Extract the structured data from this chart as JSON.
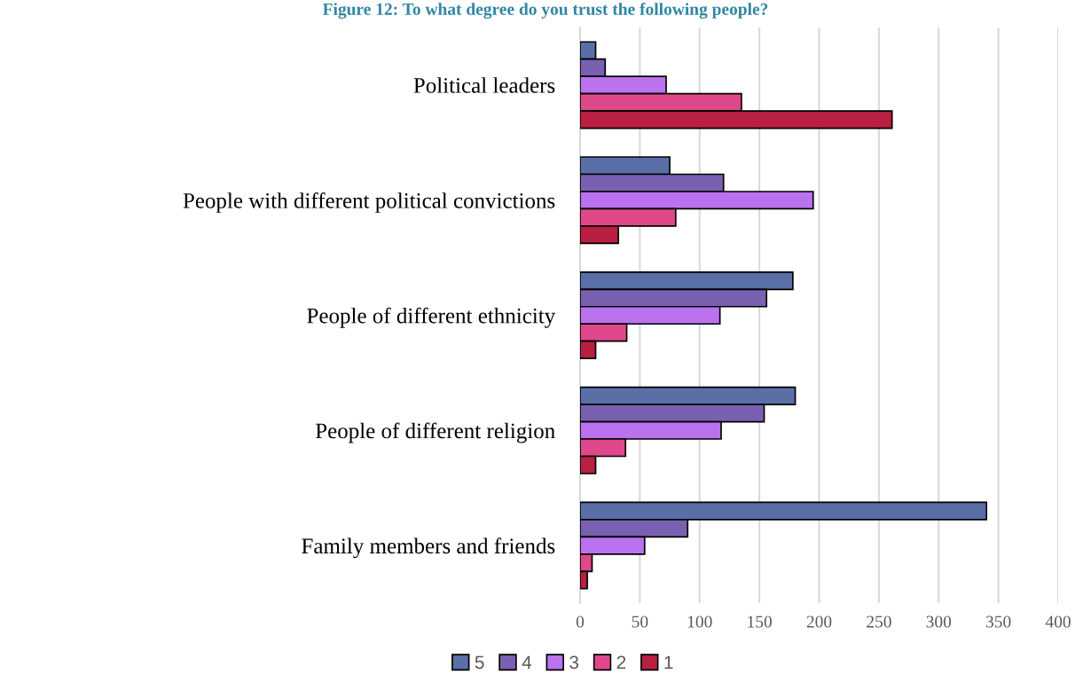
{
  "chart_data": {
    "type": "bar",
    "orientation": "horizontal",
    "title": "Figure 12: To what degree do you trust the following people?",
    "categories": [
      "Political leaders",
      "People with different political convictions",
      "People of different ethnicity",
      "People of different religion",
      "Family members and friends"
    ],
    "series": [
      {
        "name": "5",
        "color": "#5a6ea8",
        "values": [
          13,
          75,
          178,
          180,
          340
        ]
      },
      {
        "name": "4",
        "color": "#7a60b0",
        "values": [
          21,
          120,
          156,
          154,
          90
        ]
      },
      {
        "name": "3",
        "color": "#ba72ee",
        "values": [
          72,
          195,
          117,
          118,
          54
        ]
      },
      {
        "name": "2",
        "color": "#e0488c",
        "values": [
          135,
          80,
          39,
          38,
          10
        ]
      },
      {
        "name": "1",
        "color": "#b81f40",
        "values": [
          261,
          32,
          13,
          13,
          6
        ]
      }
    ],
    "xlim": [
      0,
      400
    ],
    "xticks": [
      0,
      50,
      100,
      150,
      200,
      250,
      300,
      350,
      400
    ],
    "grid": "x",
    "legend": "bottom"
  }
}
